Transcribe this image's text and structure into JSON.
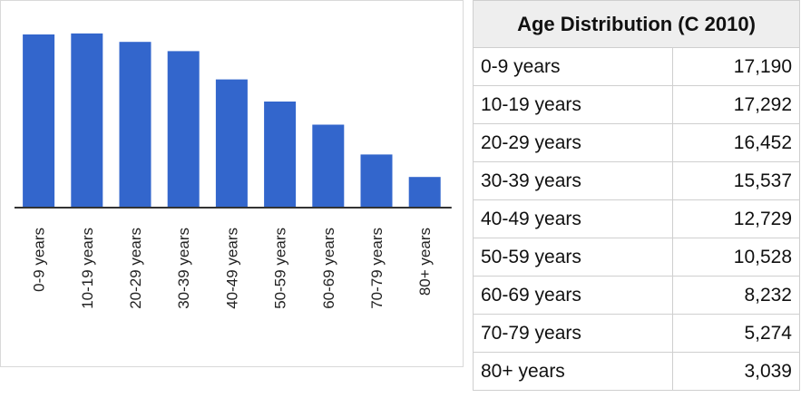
{
  "chart_data": {
    "type": "bar",
    "categories": [
      "0-9 years",
      "10-19 years",
      "20-29 years",
      "30-39 years",
      "40-49 years",
      "50-59 years",
      "60-69 years",
      "70-79 years",
      "80+ years"
    ],
    "values": [
      17190,
      17292,
      16452,
      15537,
      12729,
      10528,
      8232,
      5274,
      3039
    ],
    "title": "",
    "xlabel": "",
    "ylabel": "",
    "ylim": [
      0,
      18000
    ],
    "grid": false,
    "bar_color": "#3366cc",
    "axis_color": "#333333"
  },
  "table": {
    "title": "Age Distribution (C 2010)",
    "rows": [
      {
        "label": "0-9 years",
        "value": "17,190"
      },
      {
        "label": "10-19 years",
        "value": "17,292"
      },
      {
        "label": "20-29 years",
        "value": "16,452"
      },
      {
        "label": "30-39 years",
        "value": "15,537"
      },
      {
        "label": "40-49 years",
        "value": "12,729"
      },
      {
        "label": "50-59 years",
        "value": "10,528"
      },
      {
        "label": "60-69 years",
        "value": "8,232"
      },
      {
        "label": "70-79 years",
        "value": "5,274"
      },
      {
        "label": "80+ years",
        "value": "3,039"
      }
    ]
  }
}
